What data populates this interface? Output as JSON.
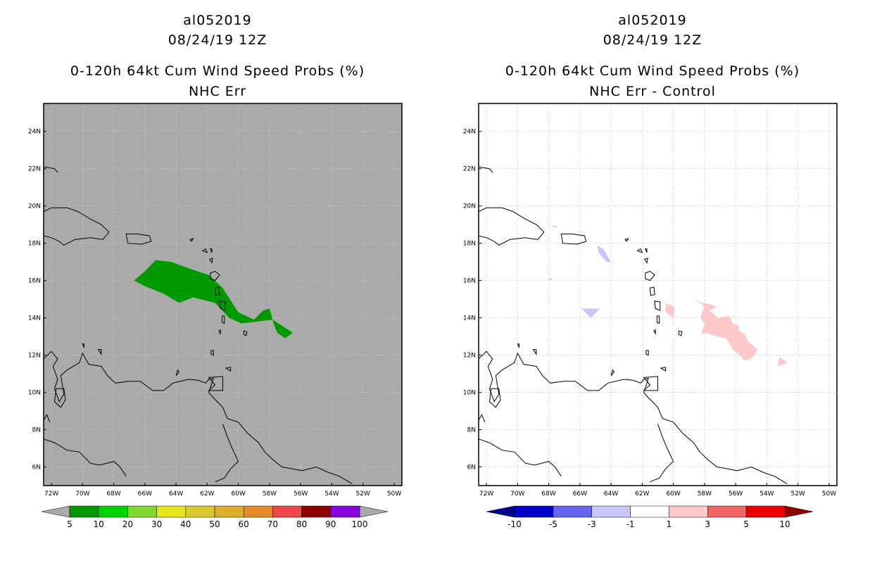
{
  "left_panel": {
    "storm_id": "al052019",
    "datetime": "08/24/19 12Z",
    "product": "0-120h 64kt Cum Wind Speed Probs (%)",
    "subtitle": "NHC Err",
    "colorbar": {
      "labels": [
        "5",
        "10",
        "20",
        "30",
        "40",
        "50",
        "60",
        "70",
        "80",
        "90",
        "100"
      ],
      "colors": [
        "#009a00",
        "#00d400",
        "#7fd730",
        "#e6e620",
        "#d9c830",
        "#dcae2a",
        "#e88a2a",
        "#f04848",
        "#8c0000",
        "#8800dd"
      ]
    }
  },
  "right_panel": {
    "storm_id": "al052019",
    "datetime": "08/24/19 12Z",
    "product": "0-120h 64kt Cum Wind Speed Probs (%)",
    "subtitle": "NHC Err - Control",
    "colorbar": {
      "labels": [
        "-10",
        "-5",
        "-3",
        "-1",
        "1",
        "3",
        "5",
        "10"
      ],
      "colors": [
        "#0000c8",
        "#6464f0",
        "#c8c8ff",
        "#ffffff",
        "#ffc8c8",
        "#f06464",
        "#f00000"
      ]
    }
  },
  "map": {
    "y_ticks": [
      "24N",
      "22N",
      "20N",
      "18N",
      "16N",
      "14N",
      "12N",
      "10N",
      "8N",
      "6N"
    ],
    "x_ticks": [
      "72W",
      "70W",
      "68W",
      "66W",
      "64W",
      "62W",
      "60W",
      "58W",
      "56W",
      "54W",
      "52W",
      "50W"
    ],
    "lon_range": [
      -72.5,
      -49.5
    ],
    "lat_range": [
      5,
      25.5
    ]
  }
}
